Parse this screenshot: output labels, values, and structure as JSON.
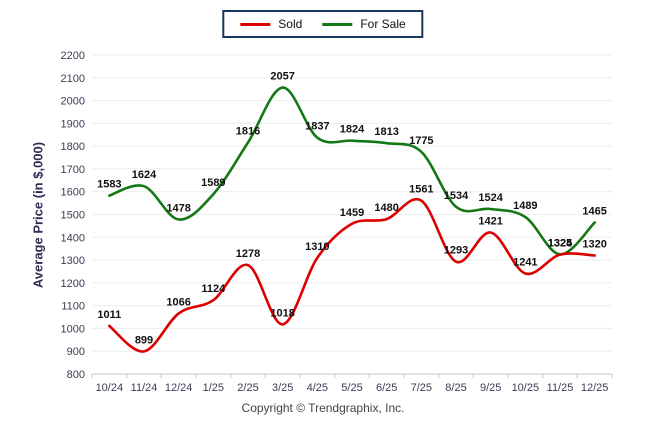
{
  "legend": {
    "items": [
      {
        "label": "Sold",
        "color": "#DD0000"
      },
      {
        "label": "For Sale",
        "color": "#147814"
      }
    ],
    "border_color": "#17375E"
  },
  "y_axis": {
    "title": "Average Price (in $,000)",
    "min": 800,
    "max": 2200,
    "step": 100
  },
  "copyright": "Copyright © Trendgraphix, Inc.",
  "chart_data": {
    "type": "line",
    "categories": [
      "10/24",
      "11/24",
      "12/24",
      "1/25",
      "2/25",
      "3/25",
      "4/25",
      "5/25",
      "6/25",
      "7/25",
      "8/25",
      "9/25",
      "10/25",
      "11/25",
      "12/25"
    ],
    "series": [
      {
        "name": "Sold",
        "color": "#DD0000",
        "values": [
          1011,
          899,
          1066,
          1124,
          1278,
          1018,
          1310,
          1459,
          1480,
          1561,
          1293,
          1421,
          1241,
          1324,
          1320
        ]
      },
      {
        "name": "For Sale",
        "color": "#147814",
        "values": [
          1583,
          1624,
          1478,
          1589,
          1816,
          2057,
          1837,
          1824,
          1813,
          1775,
          1534,
          1524,
          1489,
          1325,
          1465
        ]
      }
    ],
    "title": "",
    "xlabel": "",
    "ylabel": "Average Price (in $,000)",
    "ylim": [
      800,
      2200
    ],
    "grid": true,
    "smooth": true,
    "data_labels": true,
    "legend_position": "top-center",
    "colors": {
      "gridline": "#ECECEC",
      "axis_line": "#C4C4C4",
      "tick_label": "#3C3C55",
      "data_label": "#111111"
    }
  }
}
